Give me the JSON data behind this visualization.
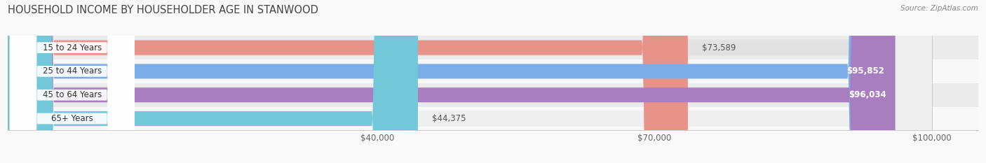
{
  "title": "HOUSEHOLD INCOME BY HOUSEHOLDER AGE IN STANWOOD",
  "source": "Source: ZipAtlas.com",
  "categories": [
    "15 to 24 Years",
    "25 to 44 Years",
    "45 to 64 Years",
    "65+ Years"
  ],
  "values": [
    73589,
    95852,
    96034,
    44375
  ],
  "bar_colors": [
    "#E8938A",
    "#7BAEE8",
    "#A87EC0",
    "#72C8D8"
  ],
  "value_labels": [
    "$73,589",
    "$95,852",
    "$96,034",
    "$44,375"
  ],
  "value_inside": [
    false,
    true,
    true,
    false
  ],
  "xlim": [
    0,
    105000
  ],
  "data_max": 100000,
  "xticks": [
    40000,
    70000,
    100000
  ],
  "xtick_labels": [
    "$40,000",
    "$70,000",
    "$100,000"
  ],
  "bar_height": 0.62,
  "row_bg_color_even": "#f2f2f2",
  "row_bg_color_odd": "#ffffff",
  "row_full_bg": "#e8e8e8",
  "title_fontsize": 10.5,
  "label_fontsize": 8.5,
  "value_fontsize": 8.5,
  "tick_fontsize": 8.5
}
